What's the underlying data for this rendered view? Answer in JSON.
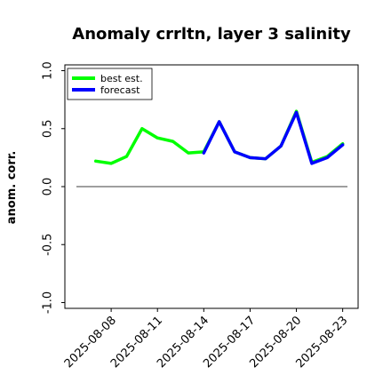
{
  "chart_data": {
    "type": "line",
    "title": "Anomaly crrltn, layer 3 salinity",
    "xlabel": "",
    "ylabel": "anom. corr.",
    "ylim": [
      -1.05,
      1.05
    ],
    "yticks": [
      -1.0,
      -0.5,
      0.0,
      0.5,
      1.0
    ],
    "ytick_labels": [
      "-1.0",
      "-0.5",
      "0.0",
      "0.5",
      "1.0"
    ],
    "xlim": [
      "2025-08-05",
      "2025-08-24"
    ],
    "xticks": [
      "2025-08-08",
      "2025-08-11",
      "2025-08-14",
      "2025-08-17",
      "2025-08-20",
      "2025-08-23"
    ],
    "xtick_labels": [
      "2025-08-08",
      "2025-08-11",
      "2025-08-14",
      "2025-08-17",
      "2025-08-20",
      "2025-08-23"
    ],
    "highlighted_xtick": "2025-08-14",
    "highlight_color": "#228b22",
    "reference_line_y": 0.0,
    "grid": false,
    "legend_position": "upper left",
    "series": [
      {
        "name": "best est.",
        "color": "#00ff00",
        "x": [
          "2025-08-07",
          "2025-08-08",
          "2025-08-09",
          "2025-08-10",
          "2025-08-11",
          "2025-08-12",
          "2025-08-13",
          "2025-08-14",
          "2025-08-15",
          "2025-08-16",
          "2025-08-17",
          "2025-08-18",
          "2025-08-19",
          "2025-08-20",
          "2025-08-21",
          "2025-08-22",
          "2025-08-23"
        ],
        "y": [
          0.22,
          0.2,
          0.26,
          0.5,
          0.42,
          0.39,
          0.29,
          0.3,
          0.56,
          0.3,
          0.25,
          0.24,
          0.35,
          0.65,
          0.21,
          0.26,
          0.37
        ]
      },
      {
        "name": "forecast",
        "color": "#0000ff",
        "x": [
          "2025-08-14",
          "2025-08-15",
          "2025-08-16",
          "2025-08-17",
          "2025-08-18",
          "2025-08-19",
          "2025-08-20",
          "2025-08-21",
          "2025-08-22",
          "2025-08-23"
        ],
        "y": [
          0.29,
          0.56,
          0.3,
          0.25,
          0.24,
          0.35,
          0.64,
          0.2,
          0.25,
          0.36
        ]
      }
    ]
  }
}
